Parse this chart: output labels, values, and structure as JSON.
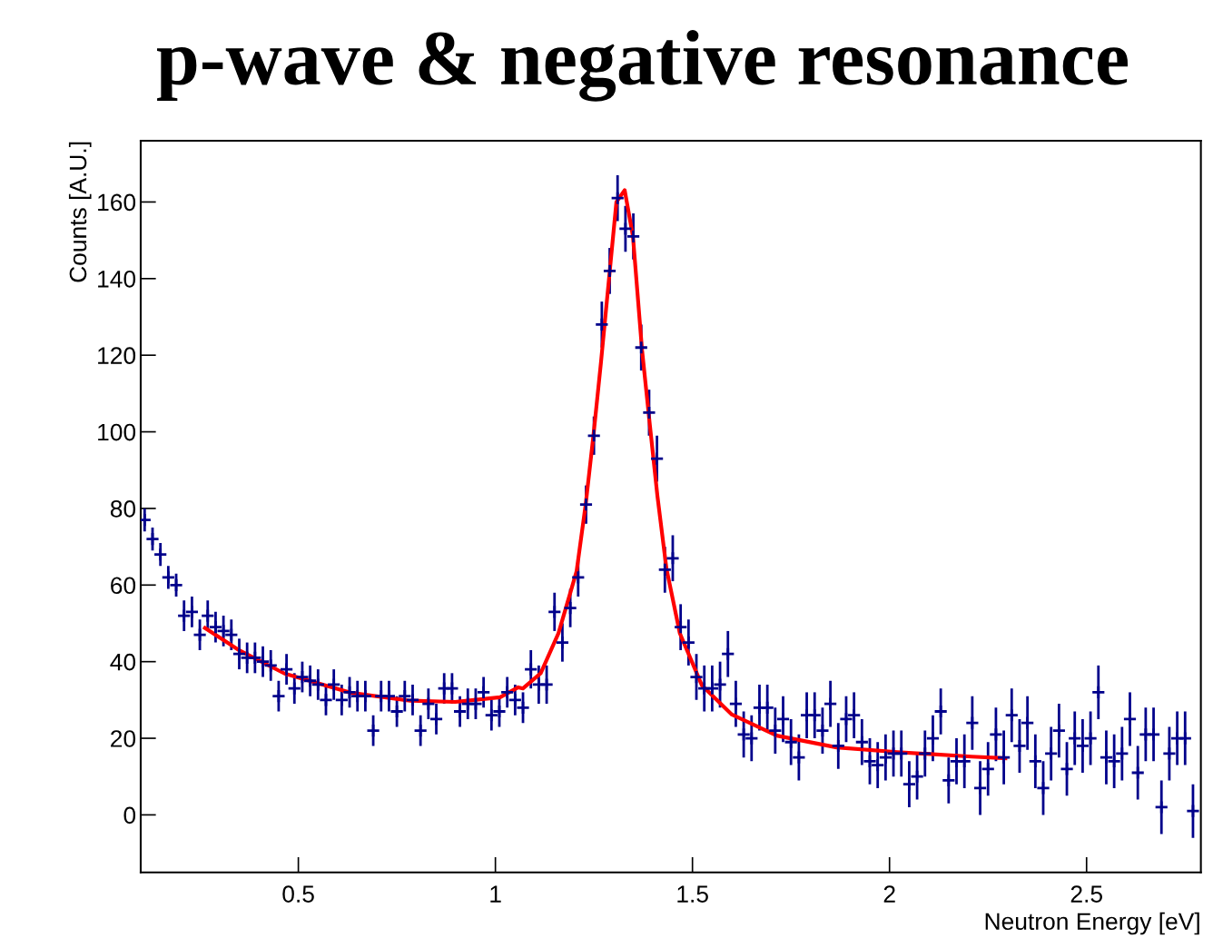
{
  "chart_data": {
    "type": "scatter",
    "title": "p-wave & negative resonance",
    "xlabel": "Neutron Energy [eV]",
    "ylabel": "Counts [A.U.]",
    "xlim": [
      0.1,
      2.79
    ],
    "ylim": [
      -15,
      176
    ],
    "xticks": [
      0.5,
      1,
      1.5,
      2,
      2.5
    ],
    "yticks": [
      0,
      20,
      40,
      60,
      80,
      100,
      120,
      140,
      160
    ],
    "grid": false,
    "legend": false,
    "series": [
      {
        "color": "#00008b",
        "marker": "cross",
        "x": [
          0.11,
          0.13,
          0.15,
          0.17,
          0.19,
          0.21,
          0.23,
          0.25,
          0.27,
          0.29,
          0.31,
          0.33,
          0.35,
          0.37,
          0.39,
          0.41,
          0.43,
          0.45,
          0.47,
          0.49,
          0.51,
          0.53,
          0.55,
          0.57,
          0.59,
          0.61,
          0.63,
          0.65,
          0.67,
          0.69,
          0.71,
          0.73,
          0.75,
          0.77,
          0.79,
          0.81,
          0.83,
          0.85,
          0.87,
          0.89,
          0.91,
          0.93,
          0.95,
          0.97,
          0.99,
          1.01,
          1.03,
          1.05,
          1.07,
          1.09,
          1.11,
          1.13,
          1.15,
          1.17,
          1.19,
          1.21,
          1.23,
          1.25,
          1.27,
          1.29,
          1.31,
          1.33,
          1.35,
          1.37,
          1.39,
          1.41,
          1.43,
          1.45,
          1.47,
          1.49,
          1.51,
          1.53,
          1.55,
          1.57,
          1.59,
          1.61,
          1.63,
          1.65,
          1.67,
          1.69,
          1.71,
          1.73,
          1.75,
          1.77,
          1.79,
          1.81,
          1.83,
          1.85,
          1.87,
          1.89,
          1.91,
          1.93,
          1.95,
          1.97,
          1.99,
          2.01,
          2.03,
          2.05,
          2.07,
          2.09,
          2.11,
          2.13,
          2.15,
          2.17,
          2.19,
          2.21,
          2.23,
          2.25,
          2.27,
          2.29,
          2.31,
          2.33,
          2.35,
          2.37,
          2.39,
          2.41,
          2.43,
          2.45,
          2.47,
          2.49,
          2.51,
          2.53,
          2.55,
          2.57,
          2.59,
          2.61,
          2.63,
          2.65,
          2.67,
          2.69,
          2.71,
          2.73,
          2.75,
          2.77
        ],
        "values": [
          77,
          72,
          68,
          62,
          60,
          52,
          53,
          47,
          52,
          49,
          48,
          47,
          42,
          41,
          41,
          40,
          39,
          31,
          38,
          33,
          36,
          35,
          34,
          30,
          34,
          30,
          32,
          31,
          31,
          22,
          31,
          31,
          27,
          31,
          30,
          22,
          29,
          25,
          33,
          33,
          27,
          29,
          29,
          32,
          26,
          27,
          32,
          30,
          28,
          38,
          34,
          34,
          53,
          45,
          54,
          62,
          81,
          99,
          128,
          142,
          161,
          153,
          151,
          122,
          105,
          93,
          64,
          67,
          49,
          45,
          36,
          33,
          33,
          34,
          42,
          29,
          21,
          20,
          28,
          28,
          22,
          25,
          19,
          15,
          26,
          26,
          22,
          29,
          18,
          25,
          26,
          19,
          14,
          13,
          15,
          16,
          16,
          8,
          10,
          16,
          20,
          27,
          9,
          14,
          14,
          24,
          7,
          12,
          21,
          15,
          26,
          18,
          24,
          14,
          7,
          16,
          22,
          12,
          20,
          18,
          20,
          32,
          15,
          14,
          16,
          25,
          11,
          21,
          21,
          2,
          16,
          20,
          20,
          1
        ],
        "errors": [
          3,
          3,
          3,
          3,
          3,
          4,
          4,
          4,
          4,
          4,
          4,
          4,
          4,
          4,
          4,
          4,
          4,
          4,
          4,
          4,
          4,
          4,
          4,
          4,
          4,
          4,
          4,
          4,
          4,
          4,
          4,
          4,
          4,
          4,
          4,
          4,
          4,
          4,
          4,
          4,
          4,
          4,
          4,
          4,
          4,
          4,
          4,
          4,
          4,
          5,
          5,
          5,
          5,
          5,
          5,
          5,
          5,
          5,
          6,
          6,
          6,
          6,
          6,
          6,
          6,
          6,
          6,
          6,
          6,
          6,
          6,
          6,
          6,
          6,
          6,
          6,
          6,
          6,
          6,
          6,
          6,
          6,
          6,
          6,
          6,
          6,
          6,
          6,
          6,
          6,
          6,
          6,
          6,
          6,
          6,
          6,
          6,
          6,
          6,
          6,
          6,
          6,
          6,
          6,
          7,
          7,
          7,
          7,
          7,
          7,
          7,
          7,
          7,
          7,
          7,
          7,
          7,
          7,
          7,
          7,
          7,
          7,
          7,
          7,
          7,
          7,
          7,
          7,
          7,
          7,
          7,
          7,
          7,
          7
        ]
      },
      {
        "type": "line",
        "color": "#ff0000",
        "marker": "none",
        "x": [
          0.263,
          0.351,
          0.465,
          0.632,
          0.784,
          0.898,
          1.012,
          1.058,
          1.07,
          1.115,
          1.16,
          1.206,
          1.229,
          1.249,
          1.268,
          1.307,
          1.328,
          1.349,
          1.372,
          1.392,
          1.411,
          1.434,
          1.468,
          1.524,
          1.6,
          1.714,
          1.866,
          2.019,
          2.208,
          2.294
        ],
        "values": [
          48.8,
          42.9,
          36.9,
          31.9,
          29.8,
          29.5,
          30.7,
          33.3,
          33,
          37,
          47.4,
          63.6,
          81,
          99.3,
          118.3,
          160,
          163.1,
          151,
          121.4,
          101.7,
          83.3,
          64.3,
          47.4,
          33.8,
          26.2,
          20.7,
          17.6,
          16.4,
          15.2,
          14.8
        ]
      }
    ]
  }
}
